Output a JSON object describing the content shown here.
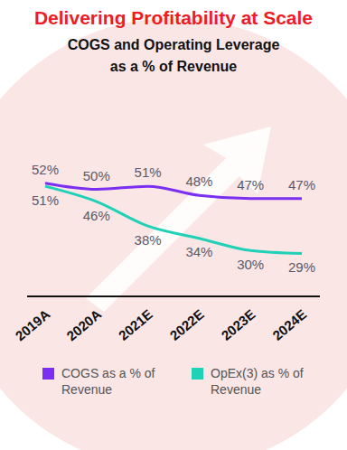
{
  "chart_data": {
    "type": "line",
    "title": "Delivering Profitability at Scale",
    "subtitle": "COGS and Operating Leverage as a % of Revenue",
    "categories": [
      "2019A",
      "2020A",
      "2021E",
      "2022E",
      "2023E",
      "2024E"
    ],
    "series": [
      {
        "name": "COGS as a % of Revenue",
        "color": "#7b2ff0",
        "values": [
          52,
          50,
          51,
          48,
          47,
          47
        ],
        "value_labels": [
          "52%",
          "50%",
          "51%",
          "48%",
          "47%",
          "47%"
        ]
      },
      {
        "name": "OpEx(3) as % of Revenue",
        "color": "#1fd1b6",
        "values": [
          51,
          46,
          38,
          34,
          30,
          29
        ],
        "value_labels": [
          "51%",
          "46%",
          "38%",
          "34%",
          "30%",
          "29%"
        ]
      }
    ],
    "ylim": [
      15,
      80
    ],
    "data_labels": true,
    "tick_labels": "x",
    "legend": "bottom"
  }
}
